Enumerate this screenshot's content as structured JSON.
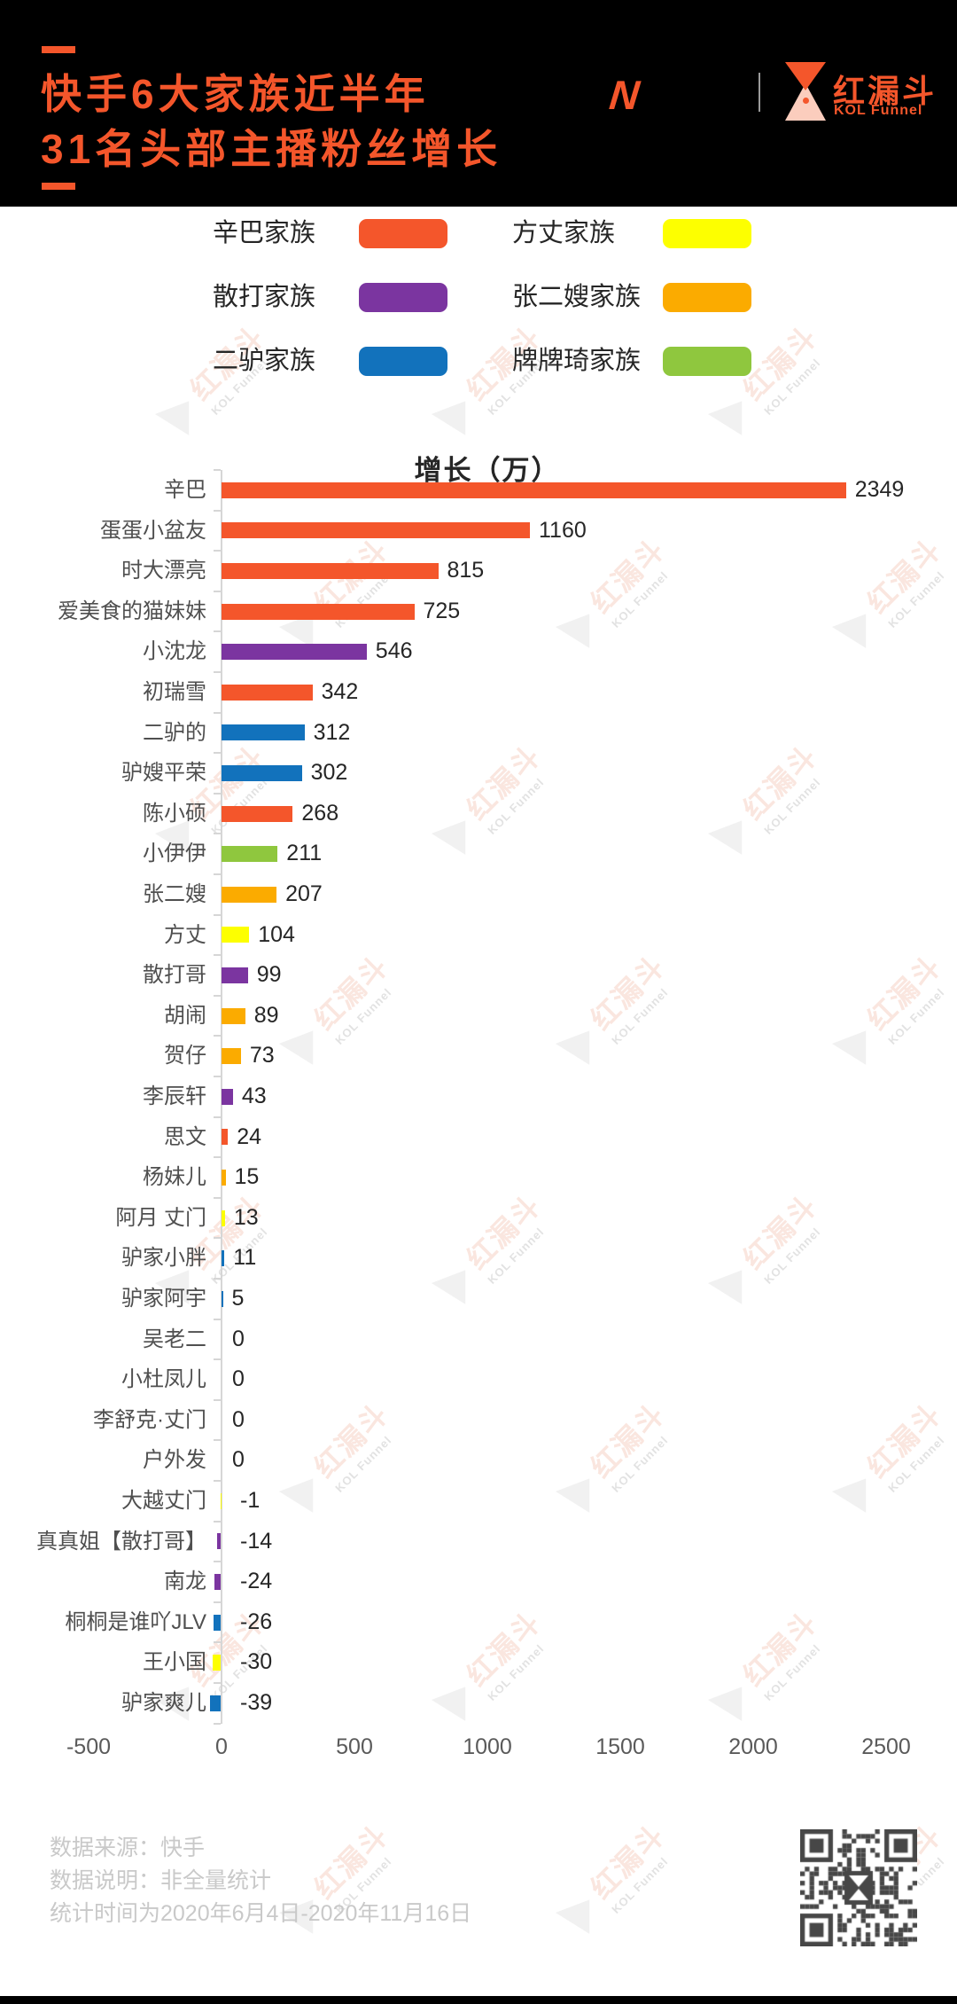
{
  "header": {
    "bg": "#000000",
    "accent": "#F4562B",
    "title_line1": "快手6大家族近半年",
    "title_line2": "31名头部主播粉丝增长",
    "brand": {
      "mark": "N",
      "name": "红漏斗",
      "subtitle": "KOL Funnel"
    }
  },
  "legend": {
    "items": [
      {
        "label": "辛巴家族",
        "color": "#F4562B"
      },
      {
        "label": "方丈家族",
        "color": "#FDFF00"
      },
      {
        "label": "散打家族",
        "color": "#7B35A0"
      },
      {
        "label": "张二嫂家族",
        "color": "#FBAB00"
      },
      {
        "label": "二驴家族",
        "color": "#1272BC"
      },
      {
        "label": "牌牌琦家族",
        "color": "#8FC73E"
      }
    ]
  },
  "chart_data": {
    "type": "bar",
    "orientation": "horizontal",
    "title": "增长（万）",
    "xlabel": "",
    "ylabel": "",
    "xlim": [
      -500,
      2500
    ],
    "x_ticks": [
      -500,
      0,
      500,
      1000,
      1500,
      2000,
      2500
    ],
    "grid": false,
    "legend_position": "top",
    "bars": [
      {
        "name": "辛巴",
        "value": 2349,
        "family": "辛巴家族"
      },
      {
        "name": "蛋蛋小盆友",
        "value": 1160,
        "family": "辛巴家族"
      },
      {
        "name": "时大漂亮",
        "value": 815,
        "family": "辛巴家族"
      },
      {
        "name": "爱美食的猫妹妹",
        "value": 725,
        "family": "辛巴家族"
      },
      {
        "name": "小沈龙",
        "value": 546,
        "family": "散打家族"
      },
      {
        "name": "初瑞雪",
        "value": 342,
        "family": "辛巴家族"
      },
      {
        "name": "二驴的",
        "value": 312,
        "family": "二驴家族"
      },
      {
        "name": "驴嫂平荣",
        "value": 302,
        "family": "二驴家族"
      },
      {
        "name": "陈小硕",
        "value": 268,
        "family": "辛巴家族"
      },
      {
        "name": "小伊伊",
        "value": 211,
        "family": "牌牌琦家族"
      },
      {
        "name": "张二嫂",
        "value": 207,
        "family": "张二嫂家族"
      },
      {
        "name": "方丈",
        "value": 104,
        "family": "方丈家族"
      },
      {
        "name": "散打哥",
        "value": 99,
        "family": "散打家族"
      },
      {
        "name": "胡闹",
        "value": 89,
        "family": "张二嫂家族"
      },
      {
        "name": "贺仔",
        "value": 73,
        "family": "张二嫂家族"
      },
      {
        "name": "李辰轩",
        "value": 43,
        "family": "散打家族"
      },
      {
        "name": "思文",
        "value": 24,
        "family": "辛巴家族"
      },
      {
        "name": "杨妹儿",
        "value": 15,
        "family": "张二嫂家族"
      },
      {
        "name": "阿月 丈门",
        "value": 13,
        "family": "方丈家族"
      },
      {
        "name": "驴家小胖",
        "value": 11,
        "family": "二驴家族"
      },
      {
        "name": "驴家阿宇",
        "value": 5,
        "family": "二驴家族"
      },
      {
        "name": "吴老二",
        "value": 0,
        "family": ""
      },
      {
        "name": "小杜凤儿",
        "value": 0,
        "family": ""
      },
      {
        "name": "李舒克·丈门",
        "value": 0,
        "family": ""
      },
      {
        "name": "户外发",
        "value": 0,
        "family": ""
      },
      {
        "name": "大越丈门",
        "value": -1,
        "family": "方丈家族"
      },
      {
        "name": "真真姐【散打哥】",
        "value": -14,
        "family": "散打家族"
      },
      {
        "name": "南龙",
        "value": -24,
        "family": "散打家族"
      },
      {
        "name": "桐桐是谁吖JLV",
        "value": -26,
        "family": "二驴家族"
      },
      {
        "name": "王小国",
        "value": -30,
        "family": "方丈家族"
      },
      {
        "name": "驴家爽儿",
        "value": -39,
        "family": "二驴家族"
      }
    ]
  },
  "footer": {
    "lines": [
      "数据来源：快手",
      "数据说明：非全量统计",
      "统计时间为2020年6月4日-2020年11月16日"
    ]
  },
  "watermark": {
    "text": "红漏斗",
    "subtext": "KOL Funnel"
  }
}
